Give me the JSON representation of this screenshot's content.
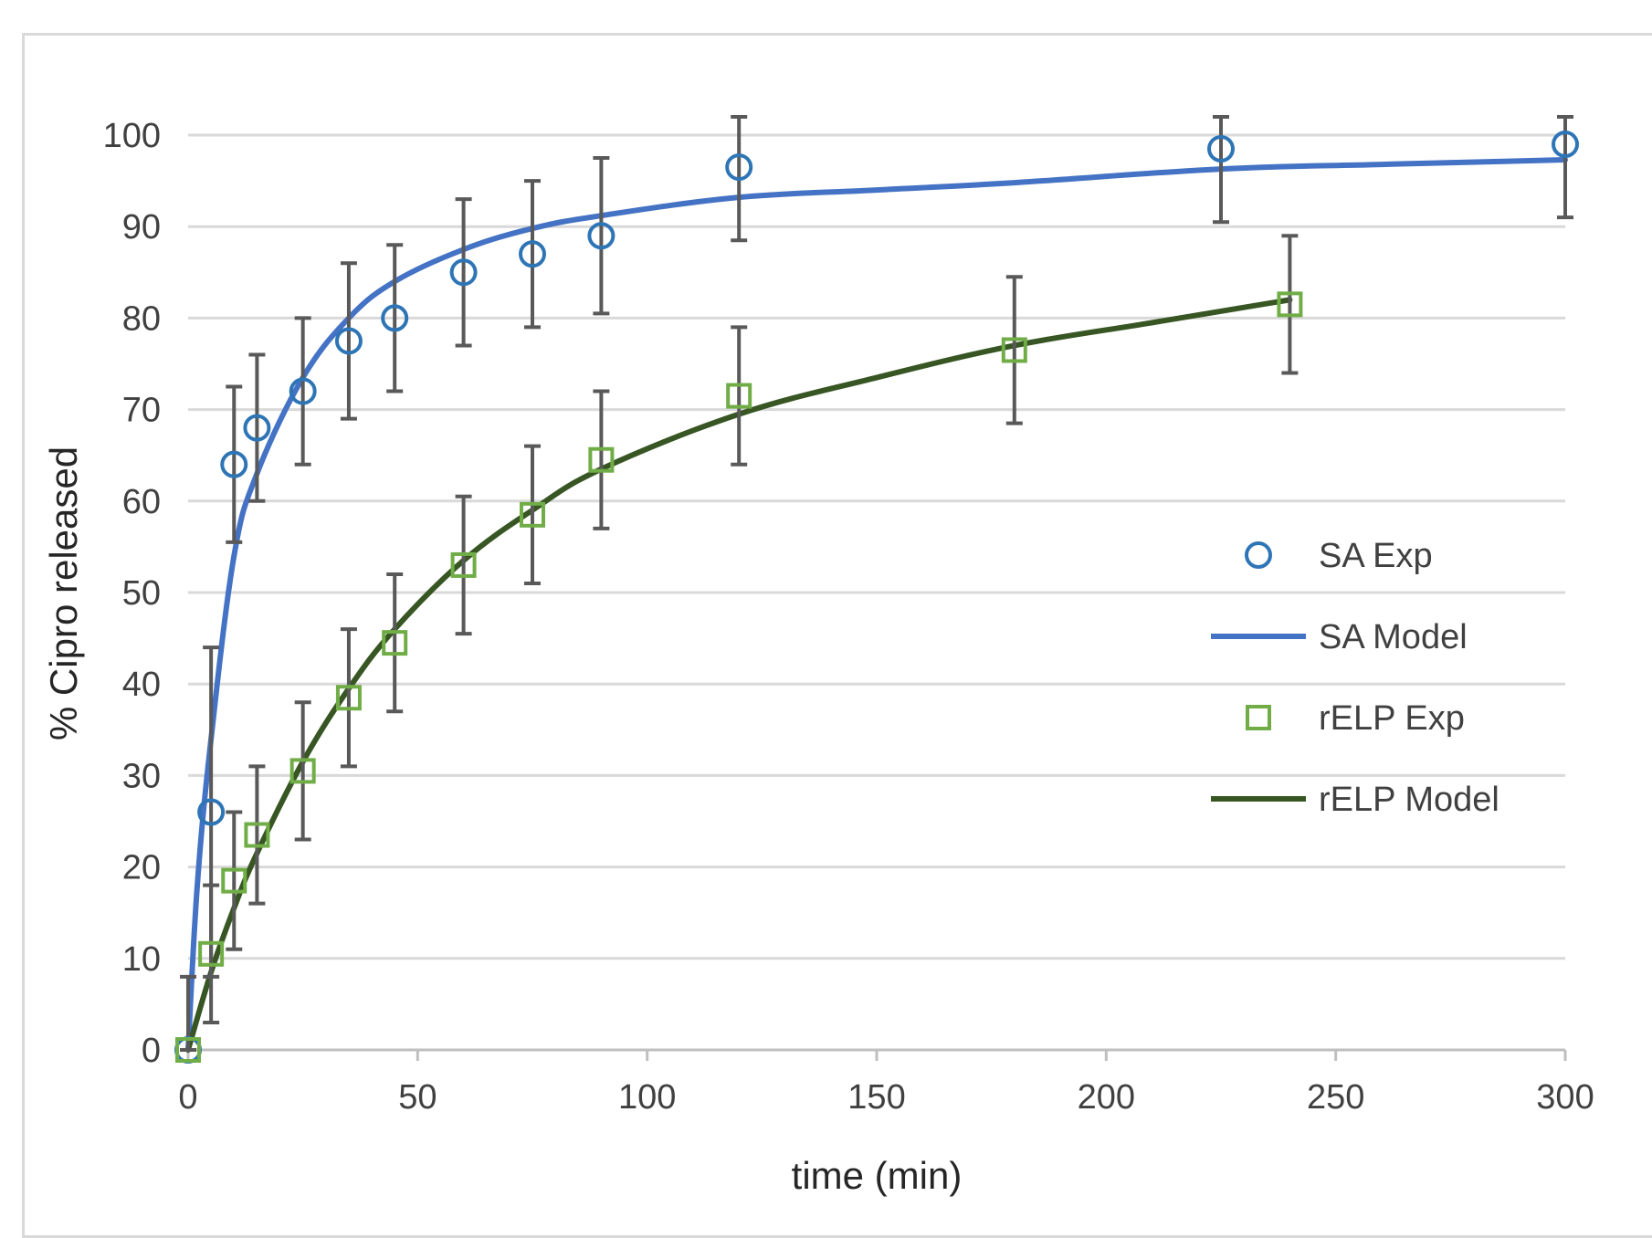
{
  "chart_data": {
    "type": "scatter",
    "title": "",
    "xlabel": "time (min)",
    "ylabel": "% Cipro released",
    "xlim": [
      0,
      300
    ],
    "ylim": [
      0,
      100
    ],
    "xticks": [
      "0",
      "50",
      "100",
      "150",
      "200",
      "250",
      "300"
    ],
    "yticks": [
      "0",
      "10",
      "20",
      "30",
      "40",
      "50",
      "60",
      "70",
      "80",
      "90",
      "100"
    ],
    "grid": "horizontal",
    "legend_position": "right",
    "series": [
      {
        "name": "SA Exp",
        "kind": "points",
        "marker": "circle",
        "color": "#2E75B6",
        "error_color": "#595959",
        "x": [
          0,
          5,
          10,
          15,
          25,
          35,
          45,
          60,
          75,
          90,
          120,
          225,
          300
        ],
        "y": [
          0,
          26,
          64,
          68,
          72,
          77.5,
          80,
          85,
          87,
          89,
          96.5,
          98.5,
          99
        ],
        "error": [
          8,
          18,
          8.5,
          8,
          8,
          8.5,
          8,
          8,
          8,
          8.5,
          8,
          8,
          8
        ]
      },
      {
        "name": "SA Model",
        "kind": "line",
        "color": "#4472C4",
        "x": [
          0,
          2,
          5,
          10,
          15,
          25,
          35,
          45,
          60,
          75,
          90,
          120,
          150,
          180,
          225,
          260,
          300
        ],
        "y": [
          0,
          18,
          34,
          54,
          63,
          73.5,
          80,
          84,
          87.5,
          89.8,
          91.2,
          93.2,
          94,
          94.8,
          96.3,
          96.8,
          97.3
        ]
      },
      {
        "name": "rELP Exp",
        "kind": "points",
        "marker": "square",
        "color": "#70AD47",
        "error_color": "#595959",
        "x": [
          0,
          5,
          10,
          15,
          25,
          35,
          45,
          60,
          75,
          90,
          120,
          180,
          240
        ],
        "y": [
          0,
          10.5,
          18.5,
          23.5,
          30.5,
          38.5,
          44.5,
          53,
          58.5,
          64.5,
          71.5,
          76.5,
          81.5
        ],
        "error": [
          0,
          7.5,
          7.5,
          7.5,
          7.5,
          7.5,
          7.5,
          7.5,
          7.5,
          7.5,
          7.5,
          8,
          7.5
        ]
      },
      {
        "name": "rELP Model",
        "kind": "line",
        "color": "#375623",
        "x": [
          0,
          5,
          10,
          15,
          25,
          35,
          45,
          60,
          75,
          90,
          120,
          150,
          180,
          210,
          240
        ],
        "y": [
          0,
          8.5,
          15.5,
          21.5,
          31.5,
          39.5,
          46,
          53.5,
          59,
          63.5,
          69.5,
          73.5,
          77,
          79.5,
          82
        ]
      }
    ]
  }
}
